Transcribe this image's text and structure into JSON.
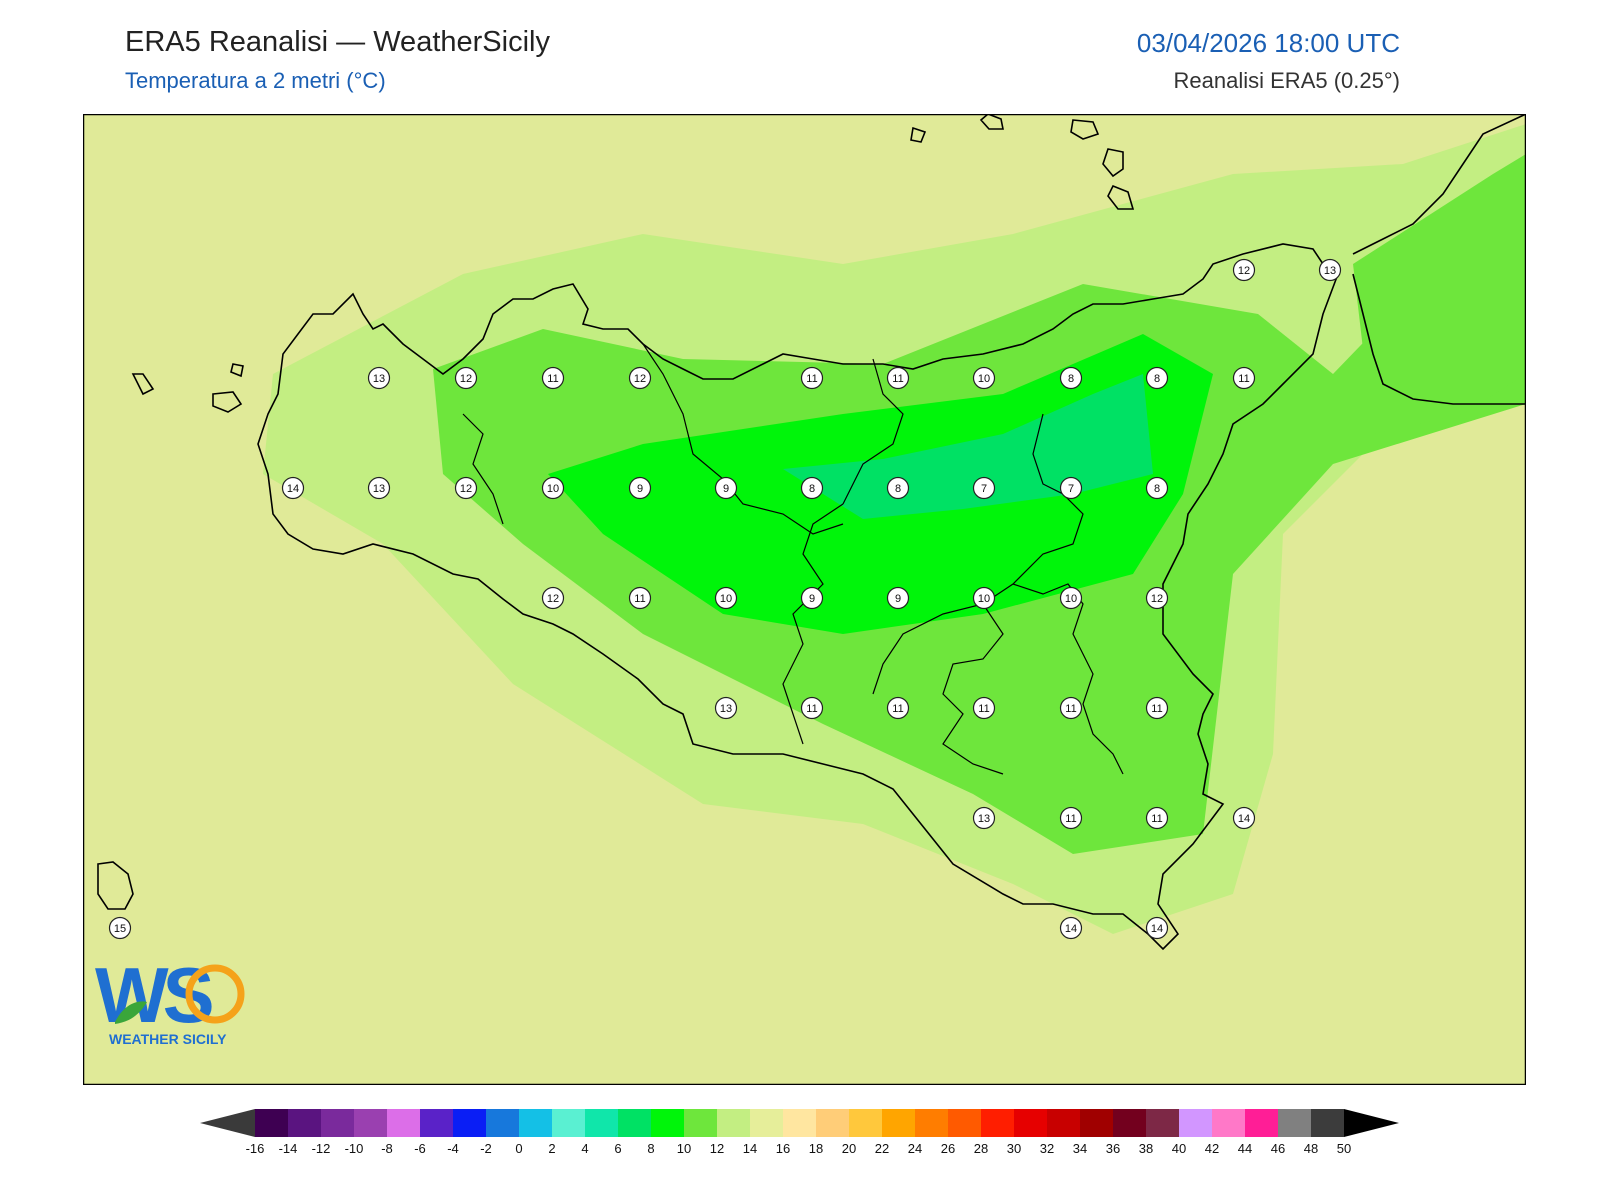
{
  "header": {
    "title": "ERA5 Reanalisi — WeatherSicily",
    "subtitle": "Temperatura a 2 metri (°C)",
    "datetime": "03/04/2026 18:00 UTC",
    "source": "Reanalisi ERA5 (0.25°)"
  },
  "map": {
    "background_color": "#e0ea98",
    "coastline_color": "#000000",
    "station_values": [
      "13",
      "12",
      "11",
      "12",
      "11",
      "11",
      "10",
      "8",
      "8",
      "11",
      "14",
      "13",
      "12",
      "10",
      "9",
      "9",
      "8",
      "8",
      "7",
      "7",
      "8",
      "12",
      "11",
      "10",
      "9",
      "9",
      "10",
      "10",
      "12",
      "13",
      "11",
      "11",
      "11",
      "11",
      "11",
      "13",
      "11",
      "11",
      "14",
      "14",
      "14",
      "12",
      "13",
      "15"
    ]
  },
  "logo": {
    "text": "WS",
    "caption": "WEATHER SICILY",
    "colors": {
      "blue": "#1f6fd1",
      "orange": "#f5a21a",
      "green": "#3aa63a"
    }
  },
  "colorbar": {
    "ticks": [
      "-16",
      "-14",
      "-12",
      "-10",
      "-8",
      "-6",
      "-4",
      "-2",
      "0",
      "2",
      "4",
      "6",
      "8",
      "10",
      "12",
      "14",
      "16",
      "18",
      "20",
      "22",
      "24",
      "26",
      "28",
      "30",
      "32",
      "34",
      "36",
      "38",
      "40",
      "42",
      "44",
      "46",
      "48",
      "50"
    ],
    "colors": [
      "#3e0052",
      "#5a1480",
      "#7a2a9c",
      "#9a40b0",
      "#dc6ee8",
      "#5a22c8",
      "#0a1ef5",
      "#1778dc",
      "#14c0e6",
      "#5af0d2",
      "#10e6aa",
      "#00e164",
      "#00f50a",
      "#6ee63c",
      "#c3ee82",
      "#e6ee9a",
      "#ffe6a0",
      "#ffcd78",
      "#ffc83c",
      "#ffa500",
      "#ff7d00",
      "#ff5a00",
      "#ff1e00",
      "#e60000",
      "#c80000",
      "#a00000",
      "#73001e",
      "#7d2846",
      "#d296ff",
      "#ff78c8",
      "#ff1e96",
      "#808080",
      "#3c3c3c"
    ],
    "under_color": "#3a3a3a",
    "over_color": "#000000"
  }
}
